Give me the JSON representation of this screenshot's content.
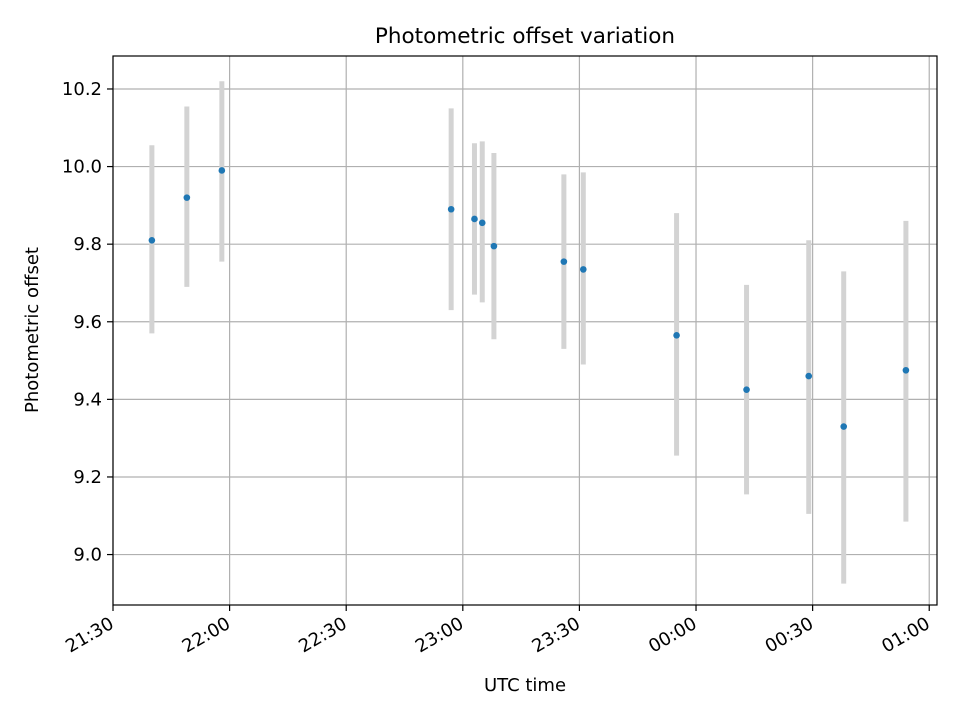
{
  "chart_data": {
    "type": "scatter",
    "title": "Photometric offset variation",
    "xlabel": "UTC time",
    "ylabel": "Photometric offset",
    "x_axis_kind": "time",
    "xlim": [
      "21:30",
      "01:02"
    ],
    "ylim": [
      8.87,
      10.285
    ],
    "x_ticks": [
      "21:30",
      "22:00",
      "22:30",
      "23:00",
      "23:30",
      "00:00",
      "00:30",
      "01:00"
    ],
    "y_ticks": [
      9.0,
      9.2,
      9.4,
      9.6,
      9.8,
      10.0,
      10.2
    ],
    "grid": true,
    "point_color": "#1f77b4",
    "errorbar_color": "#d3d3d3",
    "points": [
      {
        "x": "21:40",
        "y": 9.81,
        "ylow": 9.57,
        "yhigh": 10.055
      },
      {
        "x": "21:49",
        "y": 9.92,
        "ylow": 9.69,
        "yhigh": 10.155
      },
      {
        "x": "21:58",
        "y": 9.99,
        "ylow": 9.755,
        "yhigh": 10.22
      },
      {
        "x": "22:57",
        "y": 9.89,
        "ylow": 9.63,
        "yhigh": 10.15
      },
      {
        "x": "23:03",
        "y": 9.865,
        "ylow": 9.67,
        "yhigh": 10.06
      },
      {
        "x": "23:05",
        "y": 9.855,
        "ylow": 9.65,
        "yhigh": 10.065
      },
      {
        "x": "23:08",
        "y": 9.795,
        "ylow": 9.555,
        "yhigh": 10.035
      },
      {
        "x": "23:26",
        "y": 9.755,
        "ylow": 9.53,
        "yhigh": 9.98
      },
      {
        "x": "23:31",
        "y": 9.735,
        "ylow": 9.49,
        "yhigh": 9.985
      },
      {
        "x": "23:55",
        "y": 9.565,
        "ylow": 9.255,
        "yhigh": 9.88
      },
      {
        "x": "00:13",
        "y": 9.425,
        "ylow": 9.155,
        "yhigh": 9.695
      },
      {
        "x": "00:29",
        "y": 9.46,
        "ylow": 9.105,
        "yhigh": 9.81
      },
      {
        "x": "00:38",
        "y": 9.33,
        "ylow": 8.925,
        "yhigh": 9.73
      },
      {
        "x": "00:54",
        "y": 9.475,
        "ylow": 9.085,
        "yhigh": 9.86
      }
    ]
  }
}
